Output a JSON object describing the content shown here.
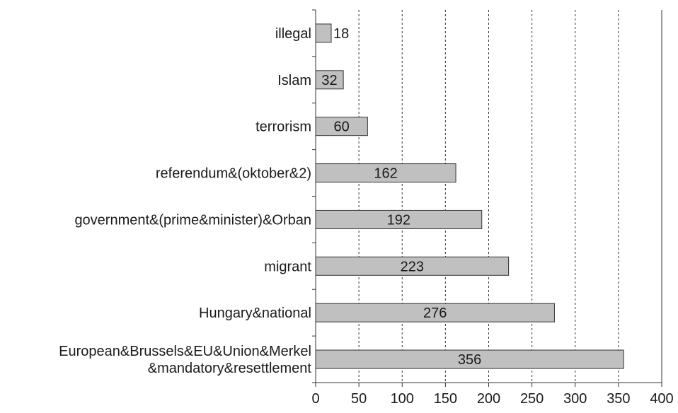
{
  "chart_data": {
    "type": "bar",
    "orientation": "horizontal",
    "categories": [
      [
        "illegal"
      ],
      [
        "Islam"
      ],
      [
        "terrorism"
      ],
      [
        "referendum&(oktober&2)"
      ],
      [
        "government&(prime&minister)&Orban"
      ],
      [
        "migrant"
      ],
      [
        "Hungary&national"
      ],
      [
        "European&Brussels&EU&Union&Merkel",
        "&mandatory&resettlement"
      ]
    ],
    "values": [
      18,
      32,
      60,
      162,
      192,
      223,
      276,
      356
    ],
    "xticks": [
      "0",
      "50",
      "100",
      "150",
      "200",
      "250",
      "300",
      "350",
      "400"
    ],
    "xlim": [
      0,
      400
    ],
    "grid": "vertical dashed",
    "bar_color": "#c0c0c0",
    "bar_edge_color": "#333333",
    "title": "",
    "xlabel": "",
    "ylabel": ""
  }
}
